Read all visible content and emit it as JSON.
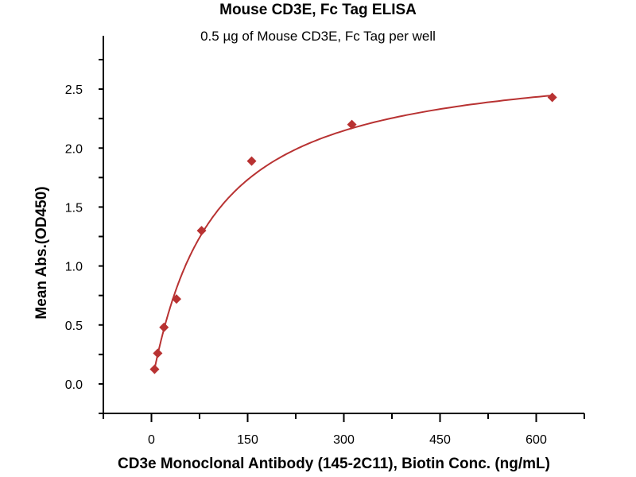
{
  "chart_data": {
    "type": "scatter",
    "title": "Mouse CD3E, Fc Tag ELISA",
    "subtitle": "0.5 µg of Mouse CD3E, Fc Tag per well",
    "xlabel": "CD3e Monoclonal Antibody (145-2C11), Biotin Conc. (ng/mL)",
    "ylabel": "Mean Abs.(OD450)",
    "xlim": [
      -75,
      675
    ],
    "ylim": [
      -0.25,
      2.75
    ],
    "xticks": [
      0,
      150,
      300,
      450,
      600
    ],
    "xtick_labels": [
      "0",
      "150",
      "300",
      "450",
      "600"
    ],
    "yticks": [
      0.0,
      0.5,
      1.0,
      1.5,
      2.0,
      2.5
    ],
    "ytick_labels": [
      "0.0",
      "0.5",
      "1.0",
      "1.5",
      "2.0",
      "2.5"
    ],
    "grid": false,
    "marker": "diamond",
    "fit_curve": true,
    "color": "#b83232",
    "series": [
      {
        "x": [
          4.88,
          9.77,
          19.53,
          39.06,
          78.13,
          156.25,
          312.5,
          625
        ],
        "y": [
          0.124,
          0.26,
          0.48,
          0.72,
          1.3,
          1.89,
          2.2,
          2.43
        ]
      }
    ]
  }
}
